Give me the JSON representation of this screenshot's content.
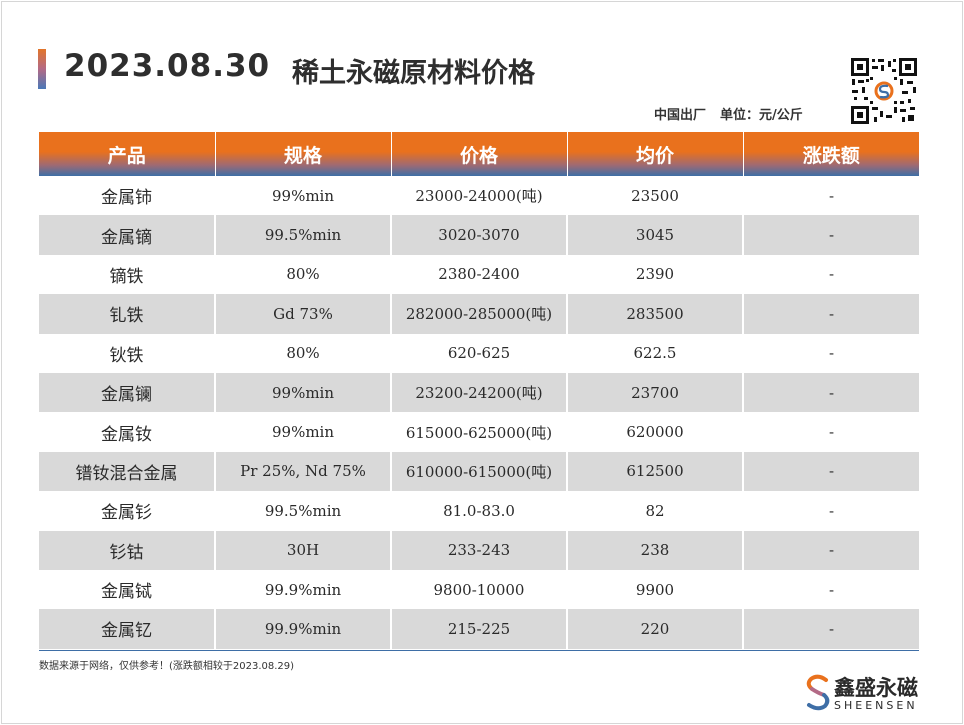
{
  "header": {
    "date": "2023.08.30",
    "title": "稀土永磁原材料价格",
    "origin": "中国出厂",
    "unit": "单位：元/公斤"
  },
  "table": {
    "columns": [
      "产品",
      "规格",
      "价格",
      "均价",
      "涨跌额"
    ],
    "rows": [
      {
        "product": "金属铈",
        "spec": "99%min",
        "price": "23000-24000(吨)",
        "avg": "23500",
        "change": "-"
      },
      {
        "product": "金属镝",
        "spec": "99.5%min",
        "price": "3020-3070",
        "avg": "3045",
        "change": "-"
      },
      {
        "product": "镝铁",
        "spec": "80%",
        "price": "2380-2400",
        "avg": "2390",
        "change": "-"
      },
      {
        "product": "钆铁",
        "spec": "Gd 73%",
        "price": "282000-285000(吨)",
        "avg": "283500",
        "change": "-"
      },
      {
        "product": "钬铁",
        "spec": "80%",
        "price": "620-625",
        "avg": "622.5",
        "change": "-"
      },
      {
        "product": "金属镧",
        "spec": "99%min",
        "price": "23200-24200(吨)",
        "avg": "23700",
        "change": "-"
      },
      {
        "product": "金属钕",
        "spec": "99%min",
        "price": "615000-625000(吨)",
        "avg": "620000",
        "change": "-"
      },
      {
        "product": "镨钕混合金属",
        "spec": "Pr 25%, Nd 75%",
        "price": "610000-615000(吨)",
        "avg": "612500",
        "change": "-"
      },
      {
        "product": "金属钐",
        "spec": "99.5%min",
        "price": "81.0-83.0",
        "avg": "82",
        "change": "-"
      },
      {
        "product": "钐钴",
        "spec": "30H",
        "price": "233-243",
        "avg": "238",
        "change": "-"
      },
      {
        "product": "金属铽",
        "spec": "99.9%min",
        "price": "9800-10000",
        "avg": "9900",
        "change": "-"
      },
      {
        "product": "金属钇",
        "spec": "99.9%min",
        "price": "215-225",
        "avg": "220",
        "change": "-"
      }
    ]
  },
  "footer": {
    "note": "数据来源于网络，仅供参考！(涨跌额相较于2023.08.29)",
    "logo_cn": "鑫盛永磁",
    "logo_en": "SHEENSEN"
  },
  "icons": {
    "qr": "qr-code-icon",
    "logo": "sheensen-logo-icon"
  },
  "colors": {
    "header_orange": "#e9711d",
    "header_blue": "#3e6ea6",
    "row_alt": "#d9d9d9"
  }
}
